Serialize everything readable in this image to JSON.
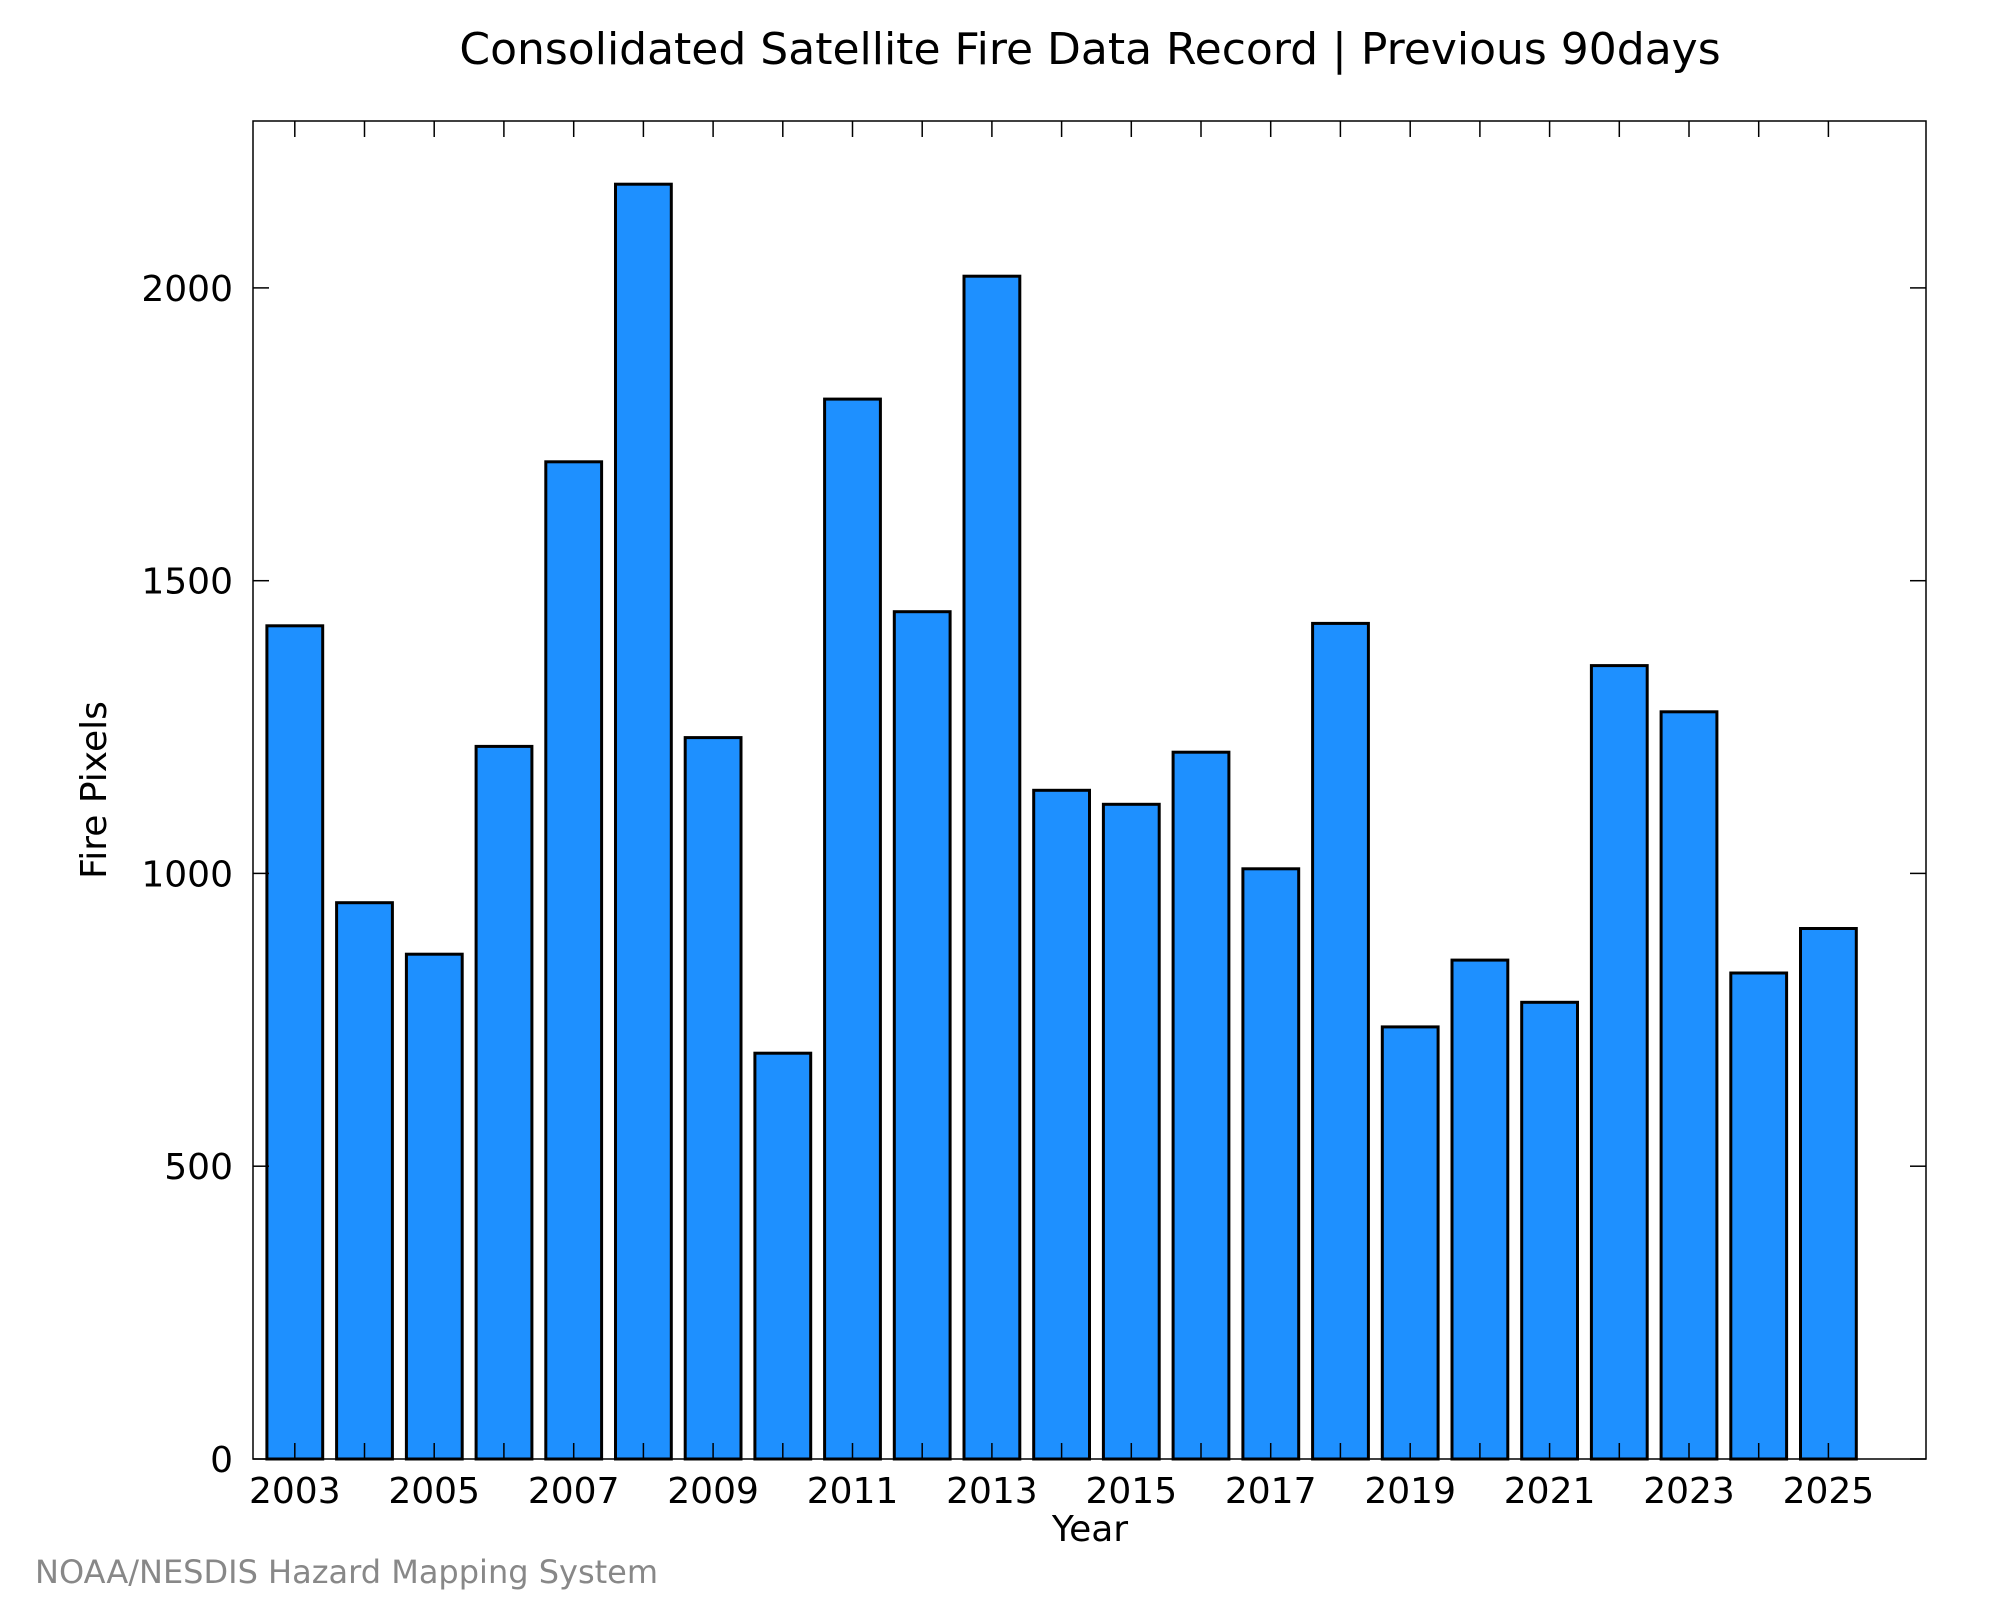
{
  "chart_data": {
    "type": "bar",
    "title": "Consolidated Satellite Fire Data Record | Previous 90days",
    "xlabel": "Year",
    "ylabel": "Fire Pixels",
    "credit": "NOAA/NESDIS Hazard Mapping System",
    "categories": [
      2003,
      2004,
      2005,
      2006,
      2007,
      2008,
      2009,
      2010,
      2011,
      2012,
      2013,
      2014,
      2015,
      2016,
      2017,
      2018,
      2019,
      2020,
      2021,
      2022,
      2023,
      2024,
      2025
    ],
    "values": [
      1423,
      950,
      862,
      1217,
      1703,
      2177,
      1232,
      693,
      1810,
      1447,
      2020,
      1142,
      1118,
      1207,
      1008,
      1427,
      738,
      852,
      780,
      1355,
      1276,
      830,
      906
    ],
    "x_tick_labels": [
      "2003",
      "2005",
      "2007",
      "2009",
      "2011",
      "2013",
      "2015",
      "2017",
      "2019",
      "2021",
      "2023",
      "2025"
    ],
    "y_ticks": [
      0,
      500,
      1000,
      1500,
      2000
    ],
    "ylim": [
      0,
      2285
    ],
    "xlim": [
      2002.4,
      2026.4
    ],
    "bar_color": "#1e90ff",
    "edge_color": "#000000",
    "grid": false
  }
}
